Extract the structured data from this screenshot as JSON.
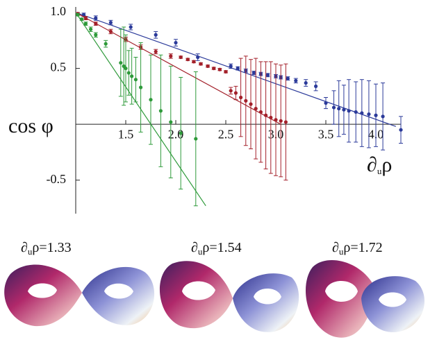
{
  "chart_data": {
    "type": "scatter",
    "ylabel": "cos φ",
    "xlabel": [
      "∂",
      "u",
      "ρ"
    ],
    "xlim": [
      1,
      4.25
    ],
    "ylim": [
      -0.8,
      1.05
    ],
    "xticks": [
      1.5,
      {
        "value": 2,
        "label": "2.0"
      },
      2.5,
      {
        "value": 3,
        "label": "3.0"
      },
      3.5,
      {
        "value": 4,
        "label": "4.0"
      }
    ],
    "yticks": [
      {
        "value": 1,
        "label": "1.0"
      },
      0.5,
      -0.5
    ],
    "series": [
      {
        "color": "#2b3a9a",
        "x": [
          1.02,
          1.08,
          1.2,
          1.35,
          1.55,
          1.8,
          2.0,
          2.22,
          2.55,
          2.62,
          2.7,
          2.78,
          2.85,
          2.92,
          3.0,
          3.05,
          3.12,
          3.2,
          3.3,
          3.4,
          3.5,
          3.58,
          3.63,
          3.68,
          3.73,
          3.8,
          3.86,
          3.93,
          4.0,
          4.07,
          4.25
        ],
        "values": [
          0.99,
          0.98,
          0.95,
          0.91,
          0.87,
          0.8,
          0.73,
          0.6,
          0.52,
          0.5,
          0.48,
          0.46,
          0.45,
          0.44,
          0.43,
          0.42,
          0.41,
          0.39,
          0.37,
          0.34,
          0.19,
          0.15,
          0.14,
          0.13,
          0.12,
          0.11,
          0.1,
          0.09,
          0.08,
          0.07,
          -0.05
        ],
        "errors": [
          0.01,
          0.015,
          0.02,
          0.02,
          0.025,
          0.03,
          0.03,
          0.03,
          0.02,
          0.015,
          0.015,
          0.015,
          0.015,
          0.015,
          0.015,
          0.015,
          0.015,
          0.02,
          0.03,
          0.04,
          0.05,
          0.15,
          0.25,
          0.22,
          0.28,
          0.27,
          0.3,
          0.3,
          0.28,
          0.3,
          0.12
        ],
        "fit_x": [
          1,
          4.2
        ],
        "fit_y": [
          1,
          -0.02
        ]
      },
      {
        "color": "#a3202a",
        "x": [
          1.02,
          1.1,
          1.2,
          1.35,
          1.5,
          1.65,
          1.8,
          1.95,
          2.05,
          2.12,
          2.18,
          2.25,
          2.32,
          2.38,
          2.44,
          2.5,
          2.55,
          2.6,
          2.65,
          2.7,
          2.75,
          2.8,
          2.85,
          2.9,
          2.95,
          3.0,
          3.05,
          3.1
        ],
        "values": [
          0.99,
          0.95,
          0.9,
          0.83,
          0.76,
          0.69,
          0.65,
          0.61,
          0.6,
          0.58,
          0.56,
          0.54,
          0.52,
          0.5,
          0.49,
          0.47,
          0.3,
          0.28,
          0.24,
          0.21,
          0.18,
          0.14,
          0.11,
          0.08,
          0.06,
          0.04,
          0.03,
          0.02
        ],
        "errors": [
          0.01,
          0.015,
          0.015,
          0.02,
          0.02,
          0.02,
          0.02,
          0.02,
          0.01,
          0.01,
          0.01,
          0.01,
          0.01,
          0.01,
          0.01,
          0.01,
          0.03,
          0.06,
          0.35,
          0.4,
          0.4,
          0.45,
          0.45,
          0.48,
          0.5,
          0.5,
          0.5,
          0.52
        ],
        "fit_x": [
          1,
          3.05
        ],
        "fit_y": [
          1,
          0
        ]
      },
      {
        "color": "#2e9a3a",
        "x": [
          1.02,
          1.06,
          1.1,
          1.15,
          1.2,
          1.3,
          1.45,
          1.48,
          1.5,
          1.53,
          1.56,
          1.6,
          1.65,
          1.75,
          1.85,
          1.95,
          2.05,
          2.2
        ],
        "values": [
          0.98,
          0.94,
          0.9,
          0.85,
          0.8,
          0.72,
          0.55,
          0.52,
          0.5,
          0.46,
          0.43,
          0.4,
          0.33,
          0.22,
          0.12,
          0.02,
          -0.08,
          -0.13
        ],
        "errors": [
          0.01,
          0.01,
          0.015,
          0.02,
          0.02,
          0.03,
          0.3,
          0.35,
          0.3,
          0.2,
          0.25,
          0.2,
          0.4,
          0.4,
          0.5,
          0.5,
          0.5,
          0.6
        ],
        "fit_x": [
          1,
          2.3
        ],
        "fit_y": [
          1,
          -0.73
        ]
      }
    ]
  },
  "panels": [
    [
      "∂",
      "u",
      "ρ=1.33"
    ],
    [
      "∂",
      "u",
      "ρ=1.54"
    ],
    [
      "∂",
      "u",
      "ρ=1.72"
    ]
  ]
}
